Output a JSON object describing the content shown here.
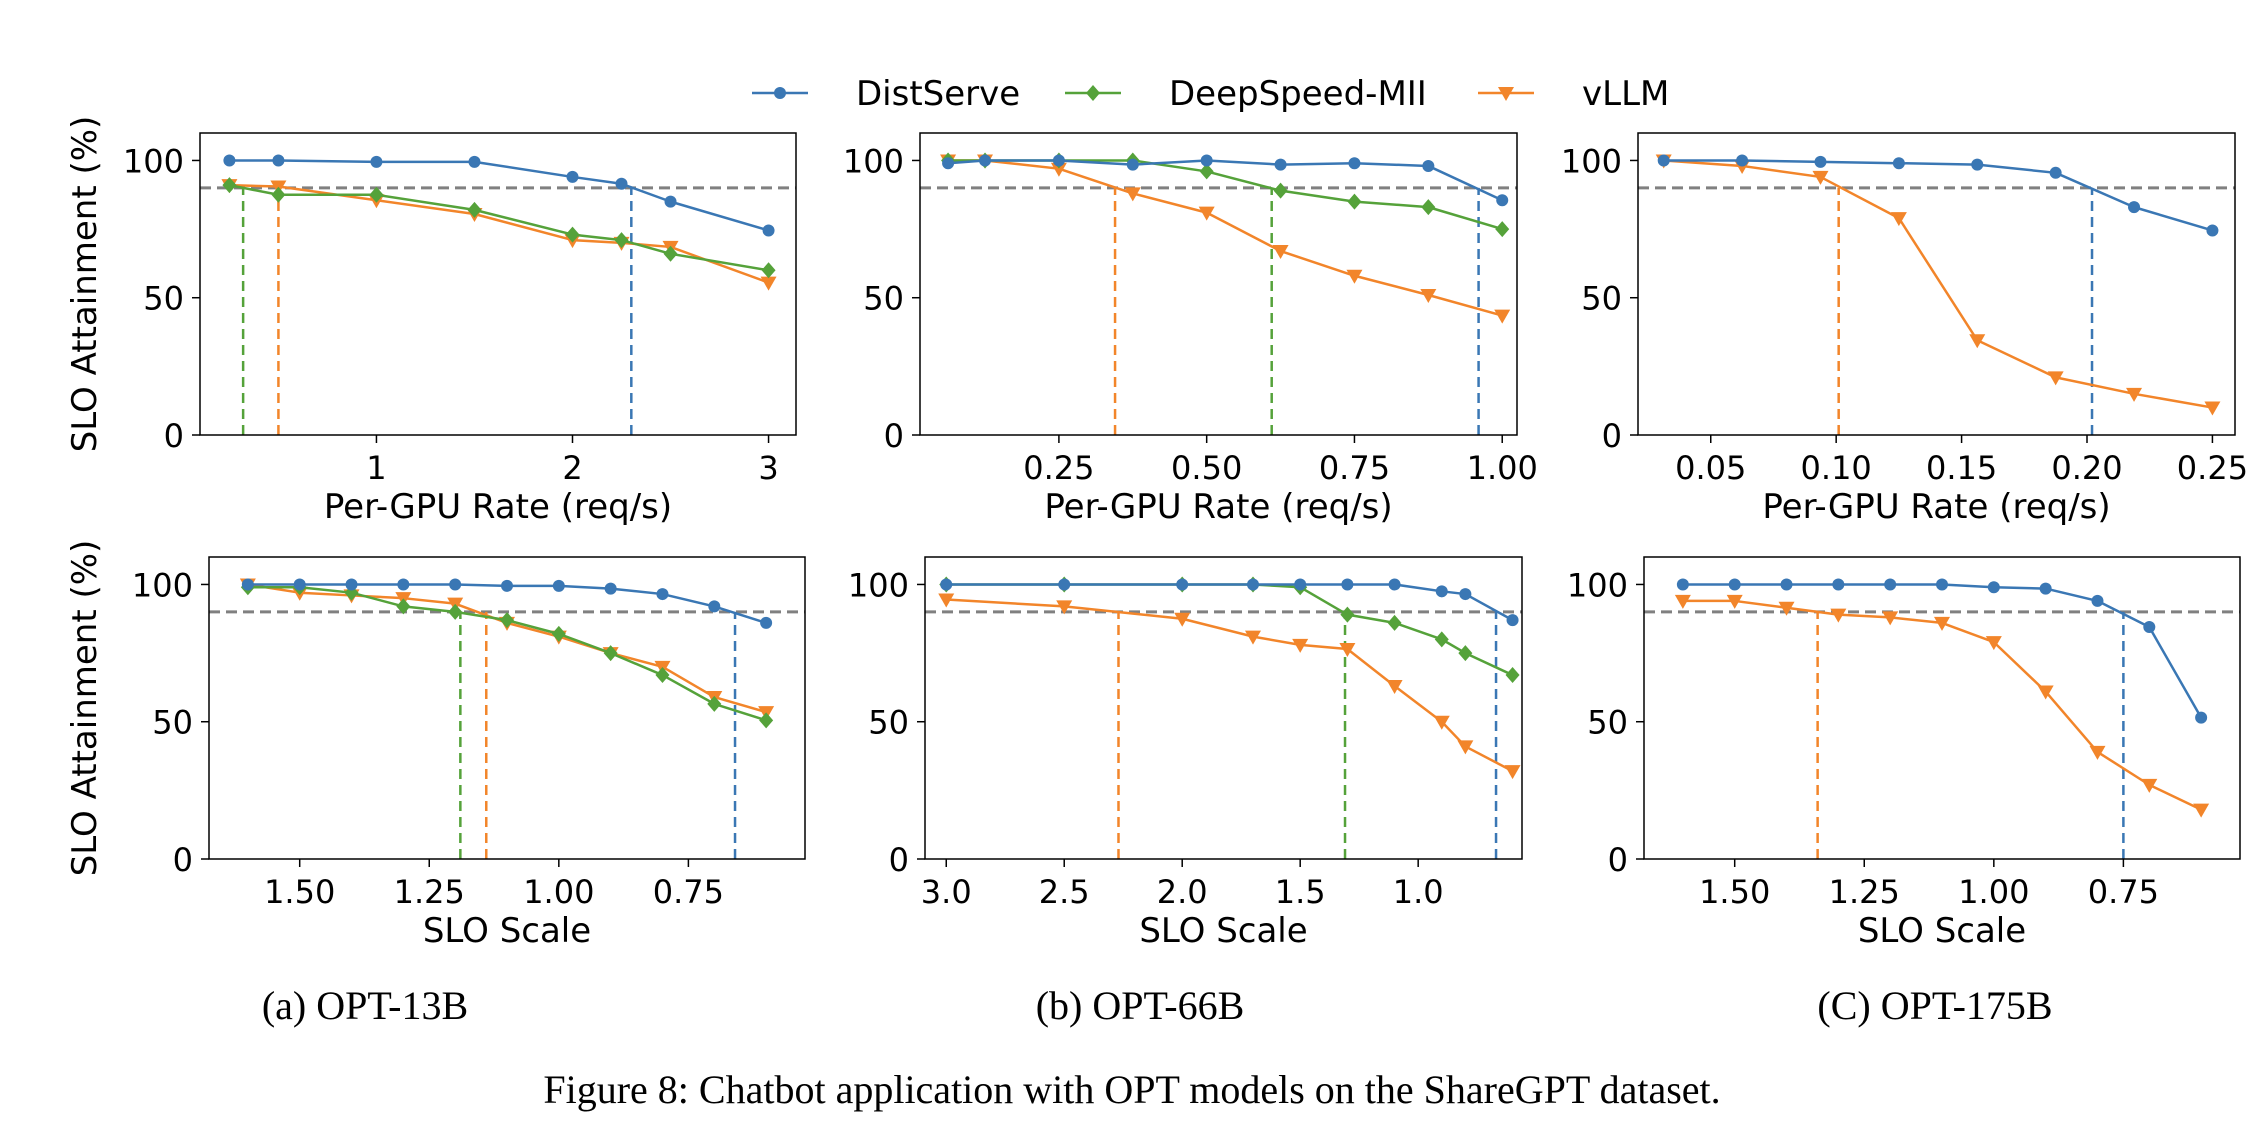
{
  "legend": [
    {
      "name": "DistServe",
      "color": "#3a77b4",
      "marker": "circle"
    },
    {
      "name": "DeepSpeed-MII",
      "color": "#55a23a",
      "marker": "diamond"
    },
    {
      "name": "vLLM",
      "color": "#f2852a",
      "marker": "triangle-down"
    }
  ],
  "subplot_labels": [
    "(a) OPT-13B",
    "(b) OPT-66B",
    "(C) OPT-175B"
  ],
  "caption": "Figure 8: Chatbot application with OPT models on the ShareGPT dataset.",
  "chart_data": [
    {
      "type": "line",
      "ylabel": "SLO Attainment (%)",
      "xlabel": "Per-GPU Rate (req/s)",
      "xlim": [
        0.1,
        3.14
      ],
      "ylim": [
        0,
        110
      ],
      "x_reversed": false,
      "xticks": [
        {
          "v": 1,
          "label": "1"
        },
        {
          "v": 2,
          "label": "2"
        },
        {
          "v": 3,
          "label": "3"
        }
      ],
      "yticks": [
        0,
        50,
        100
      ],
      "hline": 90,
      "series": [
        {
          "name": "DistServe",
          "x": [
            0.25,
            0.5,
            1,
            1.5,
            2,
            2.25,
            2.5,
            3
          ],
          "y": [
            100,
            100,
            99.5,
            99.5,
            94,
            91.5,
            85,
            74.5
          ],
          "vline": 2.3
        },
        {
          "name": "DeepSpeed-MII",
          "x": [
            0.25,
            0.5,
            1,
            1.5,
            2,
            2.25,
            2.5,
            3
          ],
          "y": [
            91,
            87.5,
            87.5,
            82,
            73,
            71,
            66,
            60
          ],
          "vline": 0.32
        },
        {
          "name": "vLLM",
          "x": [
            0.25,
            0.5,
            1,
            1.5,
            2,
            2.25,
            2.5,
            3
          ],
          "y": [
            91,
            90.5,
            85.5,
            80.5,
            71,
            70,
            68.5,
            55.5
          ],
          "vline": 0.5
        }
      ]
    },
    {
      "type": "line",
      "ylabel": "",
      "xlabel": "Per-GPU Rate (req/s)",
      "xlim": [
        0.015,
        1.025
      ],
      "ylim": [
        0,
        110
      ],
      "x_reversed": false,
      "xticks": [
        {
          "v": 0.25,
          "label": "0.25"
        },
        {
          "v": 0.5,
          "label": "0.50"
        },
        {
          "v": 0.75,
          "label": "0.75"
        },
        {
          "v": 1,
          "label": "1.00"
        }
      ],
      "yticks": [
        0,
        50,
        100
      ],
      "hline": 90,
      "series": [
        {
          "name": "DistServe",
          "x": [
            0.0625,
            0.125,
            0.25,
            0.375,
            0.5,
            0.625,
            0.75,
            0.875,
            1
          ],
          "y": [
            99,
            100,
            100,
            98.5,
            100,
            98.5,
            99,
            98,
            85.5
          ],
          "vline": 0.96
        },
        {
          "name": "DeepSpeed-MII",
          "x": [
            0.0625,
            0.125,
            0.25,
            0.375,
            0.5,
            0.625,
            0.75,
            0.875,
            1
          ],
          "y": [
            100,
            100,
            100,
            100,
            96,
            89,
            85,
            83,
            75
          ],
          "vline": 0.61
        },
        {
          "name": "vLLM",
          "x": [
            0.0625,
            0.125,
            0.25,
            0.375,
            0.5,
            0.625,
            0.75,
            0.875,
            1
          ],
          "y": [
            100,
            100,
            97,
            88,
            81,
            67,
            58,
            51,
            43.5
          ],
          "vline": 0.345
        }
      ]
    },
    {
      "type": "line",
      "ylabel": "",
      "xlabel": "Per-GPU Rate (req/s)",
      "xlim": [
        0.021,
        0.259
      ],
      "ylim": [
        0,
        110
      ],
      "x_reversed": false,
      "xticks": [
        {
          "v": 0.05,
          "label": "0.05"
        },
        {
          "v": 0.1,
          "label": "0.10"
        },
        {
          "v": 0.15,
          "label": "0.15"
        },
        {
          "v": 0.2,
          "label": "0.20"
        },
        {
          "v": 0.25,
          "label": "0.25"
        }
      ],
      "yticks": [
        0,
        50,
        100
      ],
      "hline": 90,
      "series": [
        {
          "name": "DistServe",
          "x": [
            0.03125,
            0.0625,
            0.09375,
            0.125,
            0.15625,
            0.1875,
            0.21875,
            0.25
          ],
          "y": [
            100,
            100,
            99.5,
            99,
            98.5,
            95.5,
            83,
            74.5
          ],
          "vline": 0.202
        },
        {
          "name": "vLLM",
          "x": [
            0.03125,
            0.0625,
            0.09375,
            0.125,
            0.15625,
            0.1875,
            0.21875,
            0.25
          ],
          "y": [
            100,
            98,
            94,
            79,
            34.5,
            21,
            15,
            10
          ],
          "vline": 0.101
        }
      ]
    },
    {
      "type": "line",
      "ylabel": "SLO Attainment (%)",
      "xlabel": "SLO Scale",
      "xlim": [
        1.675,
        0.525
      ],
      "ylim": [
        0,
        110
      ],
      "x_reversed": true,
      "xticks": [
        {
          "v": 1.5,
          "label": "1.50"
        },
        {
          "v": 1.25,
          "label": "1.25"
        },
        {
          "v": 1,
          "label": "1.00"
        },
        {
          "v": 0.75,
          "label": "0.75"
        }
      ],
      "yticks": [
        0,
        50,
        100
      ],
      "hline": 90,
      "series": [
        {
          "name": "DistServe",
          "x": [
            1.6,
            1.5,
            1.4,
            1.3,
            1.2,
            1.1,
            1,
            0.9,
            0.8,
            0.7,
            0.6
          ],
          "y": [
            100,
            100,
            100,
            100,
            100,
            99.5,
            99.5,
            98.5,
            96.5,
            92,
            86
          ],
          "vline": 0.66
        },
        {
          "name": "DeepSpeed-MII",
          "x": [
            1.6,
            1.5,
            1.4,
            1.3,
            1.2,
            1.1,
            1,
            0.9,
            0.8,
            0.7,
            0.6
          ],
          "y": [
            99,
            99,
            97,
            92,
            90,
            87,
            82,
            75,
            67,
            56.5,
            50.5
          ],
          "vline": 1.19
        },
        {
          "name": "vLLM",
          "x": [
            1.6,
            1.5,
            1.4,
            1.3,
            1.2,
            1.1,
            1,
            0.9,
            0.8,
            0.7,
            0.6
          ],
          "y": [
            100,
            97,
            96,
            95,
            93,
            86,
            81,
            75,
            70,
            59,
            53.5
          ],
          "vline": 1.14
        }
      ]
    },
    {
      "type": "line",
      "ylabel": "",
      "xlabel": "SLO Scale",
      "xlim": [
        3.09,
        0.56
      ],
      "ylim": [
        0,
        110
      ],
      "x_reversed": true,
      "xticks": [
        {
          "v": 3,
          "label": "3.0"
        },
        {
          "v": 2.5,
          "label": "2.5"
        },
        {
          "v": 2,
          "label": "2.0"
        },
        {
          "v": 1.5,
          "label": "1.5"
        },
        {
          "v": 1,
          "label": "1.0"
        }
      ],
      "yticks": [
        0,
        50,
        100
      ],
      "hline": 90,
      "series": [
        {
          "name": "DistServe",
          "x": [
            3,
            2.5,
            2,
            1.7,
            1.5,
            1.3,
            1.1,
            0.9,
            0.8,
            0.6
          ],
          "y": [
            100,
            100,
            100,
            100,
            100,
            100,
            100,
            97.5,
            96.5,
            87
          ],
          "vline": 0.67
        },
        {
          "name": "DeepSpeed-MII",
          "x": [
            3,
            2.5,
            2,
            1.7,
            1.5,
            1.3,
            1.1,
            0.9,
            0.8,
            0.6
          ],
          "y": [
            100,
            100,
            100,
            100,
            99,
            89,
            86,
            80,
            75,
            67
          ],
          "vline": 1.31
        },
        {
          "name": "vLLM",
          "x": [
            3,
            2.5,
            2,
            1.7,
            1.5,
            1.3,
            1.1,
            0.9,
            0.8,
            0.6
          ],
          "y": [
            94.5,
            92,
            87.5,
            81,
            78,
            76.5,
            63,
            50,
            41,
            32
          ],
          "vline": 2.27
        }
      ]
    },
    {
      "type": "line",
      "ylabel": "",
      "xlabel": "SLO Scale",
      "xlim": [
        1.675,
        0.525
      ],
      "ylim": [
        0,
        110
      ],
      "x_reversed": true,
      "xticks": [
        {
          "v": 1.5,
          "label": "1.50"
        },
        {
          "v": 1.25,
          "label": "1.25"
        },
        {
          "v": 1,
          "label": "1.00"
        },
        {
          "v": 0.75,
          "label": "0.75"
        }
      ],
      "yticks": [
        0,
        50,
        100
      ],
      "hline": 90,
      "series": [
        {
          "name": "DistServe",
          "x": [
            1.6,
            1.5,
            1.4,
            1.3,
            1.2,
            1.1,
            1,
            0.9,
            0.8,
            0.7,
            0.6
          ],
          "y": [
            100,
            100,
            100,
            100,
            100,
            100,
            99,
            98.5,
            94,
            84.5,
            51.5
          ],
          "vline": 0.75
        },
        {
          "name": "vLLM",
          "x": [
            1.6,
            1.5,
            1.4,
            1.3,
            1.2,
            1.1,
            1,
            0.9,
            0.8,
            0.7,
            0.6
          ],
          "y": [
            94,
            94,
            91.5,
            89,
            88,
            86,
            79,
            61,
            39,
            27,
            18
          ],
          "vline": 1.34
        }
      ]
    }
  ]
}
